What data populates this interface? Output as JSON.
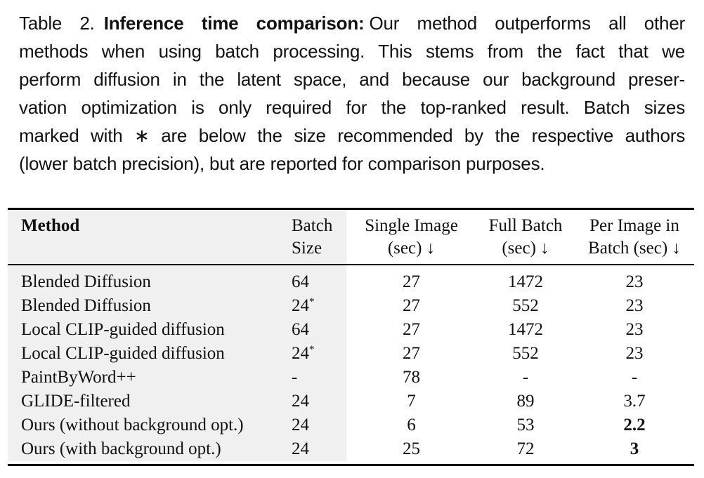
{
  "caption": {
    "prefix": "Table 2.",
    "title_bold": "Inference time comparison:",
    "line1_rest": "Our method outperforms all other",
    "lines": [
      "methods when using batch processing. This stems from the fact that we",
      "perform diffusion in the latent space, and because our background preser-",
      "vation optimization is only required for the top-ranked result. Batch sizes",
      "marked with ∗ are below the size recommended by the respective authors",
      "(lower batch precision), but are reported for comparison purposes."
    ]
  },
  "table": {
    "columns": {
      "method": {
        "label": "Method"
      },
      "batch": {
        "line1": "Batch",
        "line2": "Size"
      },
      "single": {
        "line1": "Single Image",
        "line2": "(sec) ↓"
      },
      "full": {
        "line1": "Full Batch",
        "line2": "(sec) ↓"
      },
      "per": {
        "line1": "Per Image in",
        "line2": "Batch (sec) ↓"
      }
    },
    "rows": [
      {
        "method": "Blended Diffusion",
        "batch": "64",
        "batch_star": "",
        "single": "27",
        "full": "1472",
        "per": "23",
        "per_bold": false
      },
      {
        "method": "Blended Diffusion",
        "batch": "24",
        "batch_star": "*",
        "single": "27",
        "full": "552",
        "per": "23",
        "per_bold": false
      },
      {
        "method": "Local CLIP-guided diffusion",
        "batch": "64",
        "batch_star": "",
        "single": "27",
        "full": "1472",
        "per": "23",
        "per_bold": false
      },
      {
        "method": "Local CLIP-guided diffusion",
        "batch": "24",
        "batch_star": "*",
        "single": "27",
        "full": "552",
        "per": "23",
        "per_bold": false
      },
      {
        "method": "PaintByWord++",
        "batch": "-",
        "batch_star": "",
        "single": "78",
        "full": "-",
        "per": "-",
        "per_bold": false
      },
      {
        "method": "GLIDE-filtered",
        "batch": "24",
        "batch_star": "",
        "single": "7",
        "full": "89",
        "per": "3.7",
        "per_bold": false
      },
      {
        "method": "Ours (without background opt.)",
        "batch": "24",
        "batch_star": "",
        "single": "6",
        "full": "53",
        "per": "2.2",
        "per_bold": true
      },
      {
        "method": "Ours (with background opt.)",
        "batch": "24",
        "batch_star": "",
        "single": "25",
        "full": "72",
        "per": "3",
        "per_bold": true
      }
    ]
  },
  "colors": {
    "row_band": "#f0f0f0",
    "rule": "#000000",
    "text": "#111111"
  }
}
